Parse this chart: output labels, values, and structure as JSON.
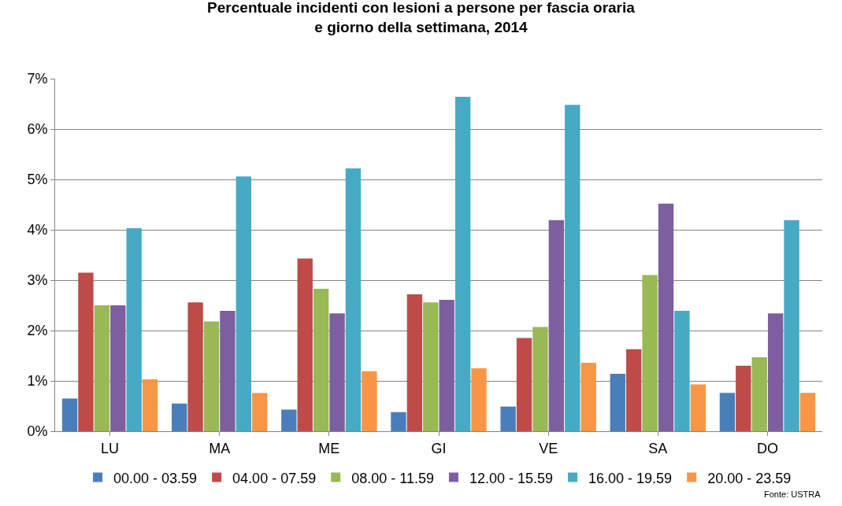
{
  "chart_data": {
    "type": "bar",
    "title": "Percentuale incidenti con lesioni a persone per fascia oraria\ne giorno della settimana, 2014",
    "categories": [
      "LU",
      "MA",
      "ME",
      "GI",
      "VE",
      "SA",
      "DO"
    ],
    "series": [
      {
        "name": "00.00 - 03.59",
        "color": "#4a7ebb",
        "values": [
          0.65,
          0.55,
          0.43,
          0.38,
          0.49,
          1.14,
          0.76
        ]
      },
      {
        "name": "04.00 - 07.59",
        "color": "#be4b48",
        "values": [
          3.15,
          2.56,
          3.43,
          2.72,
          1.85,
          1.63,
          1.3
        ]
      },
      {
        "name": "08.00 - 11.59",
        "color": "#98b954",
        "values": [
          2.5,
          2.18,
          2.83,
          2.56,
          2.07,
          3.1,
          1.47
        ]
      },
      {
        "name": "12.00 - 15.59",
        "color": "#7d5fa0",
        "values": [
          2.5,
          2.39,
          2.34,
          2.61,
          4.19,
          4.52,
          2.34
        ]
      },
      {
        "name": "16.00 - 19.59",
        "color": "#46aac5",
        "values": [
          4.03,
          5.06,
          5.22,
          6.64,
          6.48,
          2.39,
          4.19
        ]
      },
      {
        "name": "20.00 - 23.59",
        "color": "#f79646",
        "values": [
          1.03,
          0.76,
          1.19,
          1.25,
          1.36,
          0.93,
          0.76
        ]
      }
    ],
    "ylim": [
      0,
      7
    ],
    "yticks": [
      {
        "value": 0,
        "label": "0%"
      },
      {
        "value": 1,
        "label": "1%"
      },
      {
        "value": 2,
        "label": "2%"
      },
      {
        "value": 3,
        "label": "3%"
      },
      {
        "value": 4,
        "label": "4%"
      },
      {
        "value": 5,
        "label": "5%"
      },
      {
        "value": 6,
        "label": "6%"
      },
      {
        "value": 7,
        "label": "7%"
      }
    ],
    "grid": "y",
    "legend": "bottom",
    "annotations": [
      "Fonte: USTRA"
    ]
  }
}
